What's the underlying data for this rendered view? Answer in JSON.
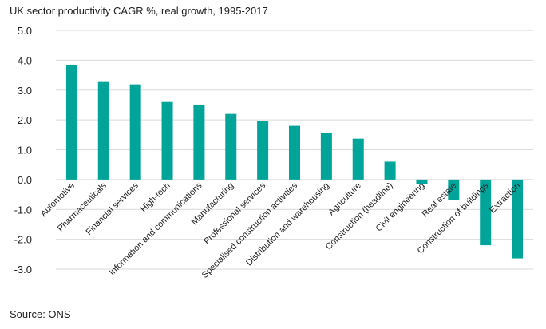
{
  "chart_data": {
    "type": "bar",
    "title": "UK sector productivity CAGR %, real growth, 1995-2017",
    "xlabel": "",
    "ylabel": "",
    "ylim": [
      -3,
      5
    ],
    "yticks": [
      "5.0",
      "4.0",
      "3.0",
      "2.0",
      "1.0",
      "0.0",
      "-1.0",
      "-2.0",
      "-3.0"
    ],
    "grid": true,
    "bar_color": "#00A499",
    "categories": [
      "Automotive",
      "Pharmaceuticals",
      "Financial services",
      "High-tech",
      "Information and communications",
      "Manufacturing",
      "Professional services",
      "Specialised construction activities",
      "Distribution and warehousing",
      "Agriculture",
      "Construction (headline)",
      "Civil engineering",
      "Real estate",
      "Construction of buildings",
      "Extraction"
    ],
    "values": [
      3.83,
      3.27,
      3.19,
      2.6,
      2.5,
      2.2,
      1.96,
      1.8,
      1.56,
      1.37,
      0.6,
      -0.15,
      -0.69,
      -2.2,
      -2.64
    ],
    "source": "Source: ONS"
  }
}
